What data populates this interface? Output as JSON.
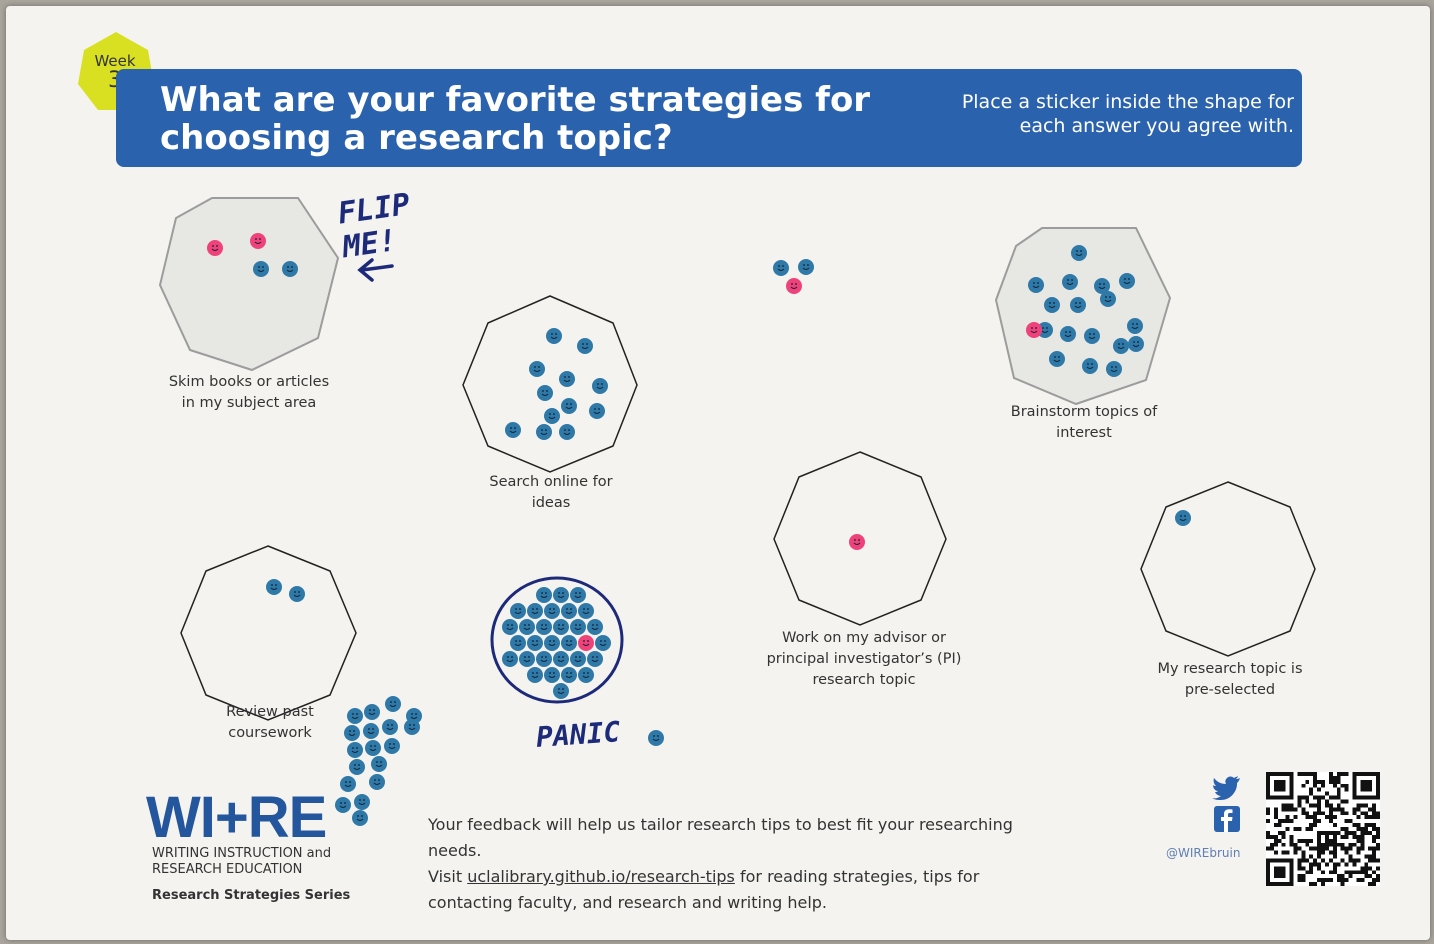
{
  "header": {
    "week_label": "Week",
    "week_number": "3",
    "question": "What are your favorite strategies for choosing a research topic?",
    "instruction": "Place a sticker inside the shape for each answer you agree with."
  },
  "options": [
    {
      "label": "Skim books or articles in my subject area",
      "votes_blue": 2,
      "votes_pink": 2
    },
    {
      "label": "Search online for ideas",
      "votes_blue": 12,
      "votes_pink": 0
    },
    {
      "label": "Brainstorm topics of interest",
      "votes_blue": 17,
      "votes_pink": 1
    },
    {
      "label": "Review past coursework",
      "votes_blue": 2,
      "votes_pink": 0
    },
    {
      "label": "Work on my advisor or principal investigator’s (PI) research topic",
      "votes_blue": 0,
      "votes_pink": 1
    },
    {
      "label": "My research topic is pre-selected",
      "votes_blue": 1,
      "votes_pink": 0
    }
  ],
  "handwriting": {
    "flip_me": "FLIP ME!",
    "panic": "PANIC"
  },
  "footer": {
    "logo": "WI+RE",
    "logo_sub": "WRITING INSTRUCTION and RESEARCH EDUCATION",
    "series": "Research Strategies Series",
    "feedback_line1": "Your feedback will help us tailor research tips to best fit your researching needs.",
    "feedback_visit": "Visit",
    "feedback_link": "uclalibrary.github.io/research-tips",
    "feedback_line2_rest": "for reading strategies, tips for contacting faculty, and research and writing help.",
    "social_handle": "@WIREbruin",
    "social_icons": [
      "twitter-icon",
      "facebook-icon"
    ]
  },
  "colors": {
    "banner": "#2a62ae",
    "badge": "#d9e021",
    "sticker_blue": "#2f79a8",
    "sticker_pink": "#f0427a",
    "marker": "#1d2a7a"
  }
}
